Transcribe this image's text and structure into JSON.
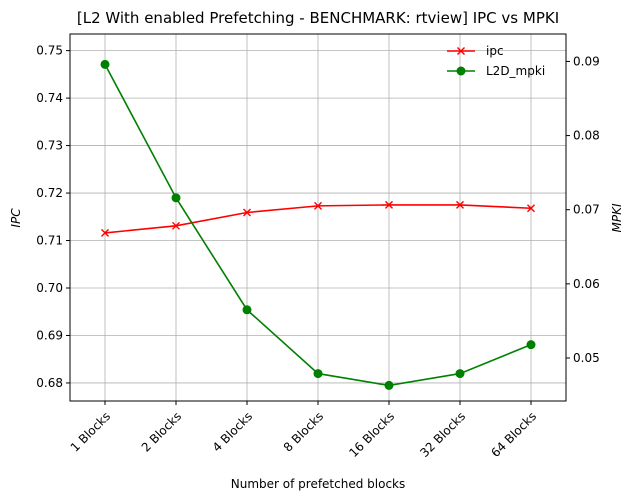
{
  "chart_data": {
    "type": "line",
    "title": "[L2 With enabled Prefetching - BENCHMARK: rtview]  IPC vs MPKI",
    "xlabel": "Number of prefetched blocks",
    "ylabel_left": "IPC",
    "ylabel_right": "MPKI",
    "categories": [
      "1 Blocks",
      "2 Blocks",
      "4 Blocks",
      "8 Blocks",
      "16 Blocks",
      "32 Blocks",
      "64 Blocks"
    ],
    "ylim_left": [
      0.6762,
      0.7535
    ],
    "yticks_left": [
      0.68,
      0.69,
      0.7,
      0.71,
      0.72,
      0.73,
      0.74,
      0.75
    ],
    "ytick_labels_left": [
      "0.68",
      "0.69",
      "0.70",
      "0.71",
      "0.72",
      "0.73",
      "0.74",
      "0.75"
    ],
    "ylim_right": [
      0.0442,
      0.0937
    ],
    "yticks_right": [
      0.05,
      0.06,
      0.07,
      0.08,
      0.09
    ],
    "ytick_labels_right": [
      "0.05",
      "0.06",
      "0.07",
      "0.08",
      "0.09"
    ],
    "grid": true,
    "legend_position": "top-right",
    "series": [
      {
        "name": "ipc",
        "axis": "left",
        "color": "#ff0000",
        "marker": "x",
        "values": [
          0.7116,
          0.7131,
          0.7159,
          0.7173,
          0.7175,
          0.7175,
          0.7168
        ]
      },
      {
        "name": "L2D_mpki",
        "axis": "right",
        "color": "#008000",
        "marker": "o",
        "values": [
          0.0896,
          0.0716,
          0.0565,
          0.0479,
          0.0463,
          0.0479,
          0.0518
        ]
      }
    ]
  }
}
